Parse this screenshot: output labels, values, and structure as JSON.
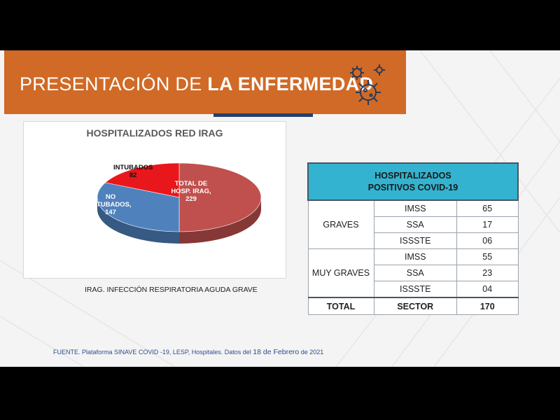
{
  "slide": {
    "title_part1": "PRESENTACIÓN DE ",
    "title_part2": "LA ENFERMEDAD",
    "icon": "virus-icon"
  },
  "chart_data": {
    "type": "pie",
    "title": "HOSPITALIZADOS RED IRAG",
    "slices": [
      {
        "label": "TOTAL DE HOSP. IRAG,",
        "value": 229,
        "color": "#c0504d"
      },
      {
        "label": "NO INTUBADOS,",
        "value": 147,
        "color": "#4f81bd"
      },
      {
        "label": "INTUBADOS",
        "value": 82,
        "color": "#e8171b"
      }
    ],
    "labels": {
      "total_line1": "TOTAL DE",
      "total_line2": "HOSP. IRAG,",
      "total_value": "229",
      "no_line1": "NO",
      "no_line2": "INTUBADOS,",
      "no_value": "147",
      "int_line1": "INTUBADOS",
      "int_value": "82"
    }
  },
  "footnote": "IRAG. INFECCIÓN RESPIRATORIA AGUDA GRAVE",
  "table": {
    "header_line1": "HOSPITALIZADOS",
    "header_line2": "POSITIVOS COVID-19",
    "groups": [
      {
        "name": "GRAVES",
        "rows": [
          {
            "sector": "IMSS",
            "value": "65"
          },
          {
            "sector": "SSA",
            "value": "17"
          },
          {
            "sector": "ISSSTE",
            "value": "06"
          }
        ]
      },
      {
        "name": "MUY GRAVES",
        "rows": [
          {
            "sector": "IMSS",
            "value": "55"
          },
          {
            "sector": "SSA",
            "value": "23"
          },
          {
            "sector": "ISSSTE",
            "value": "04"
          }
        ]
      }
    ],
    "total": {
      "label": "TOTAL",
      "sector": "SECTOR",
      "value": "170"
    }
  },
  "source": {
    "text1": "FUENTE. Plataforma SINAVE COVID -19, LESP, Hospitales. Datos del ",
    "date": "18 de Febrero",
    "text2": " de 2021"
  },
  "colors": {
    "banner": "#d06a26",
    "accent_bar": "#24406b",
    "table_header": "#33b3cf"
  }
}
